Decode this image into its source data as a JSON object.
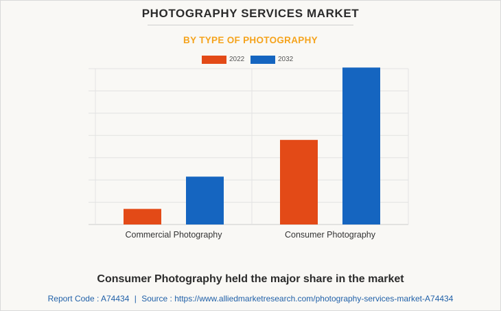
{
  "header": {
    "title": "PHOTOGRAPHY SERVICES MARKET",
    "subtitle": "BY TYPE OF PHOTOGRAPHY"
  },
  "chart_data": {
    "type": "bar",
    "categories": [
      "Commercial Photography",
      "Consumer Photography"
    ],
    "series": [
      {
        "name": "2022",
        "color": "#e34a17",
        "values": [
          0.7,
          3.8
        ]
      },
      {
        "name": "2032",
        "color": "#1565c0",
        "values": [
          2.15,
          7.05
        ]
      }
    ],
    "ylim": [
      0,
      7
    ],
    "grid": true,
    "y_tick_labels_shown": false,
    "legend_position": "top-center"
  },
  "footer": {
    "headline": "Consumer Photography held the major share in the market",
    "report_code_label": "Report Code : A74434",
    "separator": "|",
    "source_label": "Source : https://www.alliedmarketresearch.com/photography-services-market-A74434"
  }
}
